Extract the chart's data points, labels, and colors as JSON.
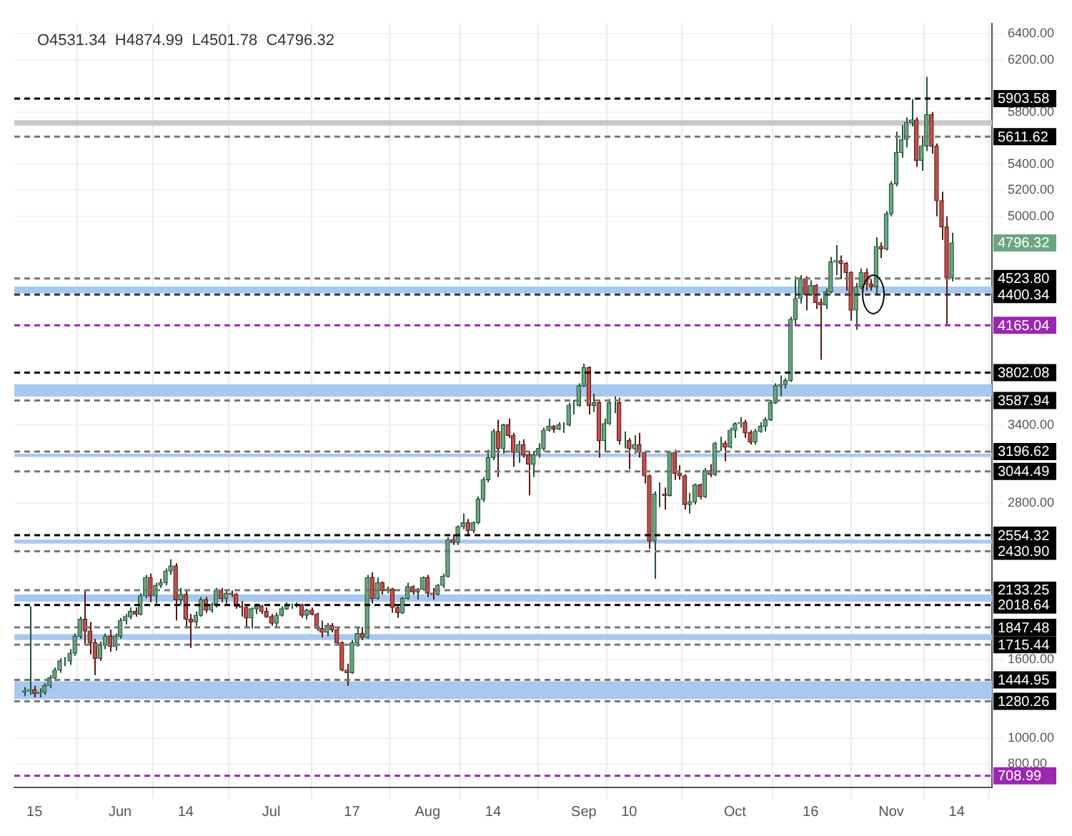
{
  "chart_data": {
    "type": "candlestick",
    "x": [
      "--05-13",
      "--05-14",
      "--05-15",
      "--05-16",
      "--05-17",
      "--05-18",
      "--05-19",
      "--05-20",
      "--05-21",
      "--05-22",
      "--05-23",
      "--05-24",
      "--05-25",
      "--05-26",
      "--05-27",
      "--05-28",
      "--05-29",
      "--05-30",
      "--05-31",
      "--06-01",
      "--06-02",
      "--06-03",
      "--06-04",
      "--06-05",
      "--06-06",
      "--06-07",
      "--06-08",
      "--06-09",
      "--06-10",
      "--06-11",
      "--06-12",
      "--06-13",
      "--06-14",
      "--06-15",
      "--06-16",
      "--06-17",
      "--06-18",
      "--06-19",
      "--06-20",
      "--06-21",
      "--06-22",
      "--06-23",
      "--06-24",
      "--06-25",
      "--06-26",
      "--06-27",
      "--06-28",
      "--06-29",
      "--06-30",
      "--07-01",
      "--07-02",
      "--07-03",
      "--07-04",
      "--07-05",
      "--07-06",
      "--07-07",
      "--07-08",
      "--07-09",
      "--07-10",
      "--07-11",
      "--07-12",
      "--07-13",
      "--07-14",
      "--07-15",
      "--07-16",
      "--07-17",
      "--07-18",
      "--07-19",
      "--07-20",
      "--07-21",
      "--07-22",
      "--07-23",
      "--07-24",
      "--07-25",
      "--07-26",
      "--07-27",
      "--07-28",
      "--07-29",
      "--07-30",
      "--07-31",
      "--08-01",
      "--08-02",
      "--08-03",
      "--08-04",
      "--08-05",
      "--08-06",
      "--08-07",
      "--08-08",
      "--08-09",
      "--08-10",
      "--08-11",
      "--08-12",
      "--08-13",
      "--08-14",
      "--08-15",
      "--08-16",
      "--08-17",
      "--08-18",
      "--08-19",
      "--08-20",
      "--08-21",
      "--08-22",
      "--08-23",
      "--08-24",
      "--08-25",
      "--08-26",
      "--08-27",
      "--08-28",
      "--08-29",
      "--08-30",
      "--08-31",
      "--09-01",
      "--09-02",
      "--09-03",
      "--09-04",
      "--09-05",
      "--09-06",
      "--09-07",
      "--09-08",
      "--09-09",
      "--09-10",
      "--09-11",
      "--09-12",
      "--09-13",
      "--09-14",
      "--09-15",
      "--09-16",
      "--09-17",
      "--09-18",
      "--09-19",
      "--09-20",
      "--09-21",
      "--09-22",
      "--09-23",
      "--09-24",
      "--09-25",
      "--09-26",
      "--09-27",
      "--09-28",
      "--09-29",
      "--09-30",
      "--10-01",
      "--10-02",
      "--10-03",
      "--10-04",
      "--10-05",
      "--10-06",
      "--10-07",
      "--10-08",
      "--10-09",
      "--10-10",
      "--10-11",
      "--10-12",
      "--10-13",
      "--10-14",
      "--10-15",
      "--10-16",
      "--10-17",
      "--10-18",
      "--10-19",
      "--10-20",
      "--10-21",
      "--10-22",
      "--10-23",
      "--10-24",
      "--10-25",
      "--10-26",
      "--10-27",
      "--10-28",
      "--10-29",
      "--10-30",
      "--10-31",
      "--11-01",
      "--11-02",
      "--11-03",
      "--11-04",
      "--11-05",
      "--11-06",
      "--11-07",
      "--11-08",
      "--11-09",
      "--11-10",
      "--11-11",
      "--11-12",
      "--11-13"
    ],
    "ohlc": [
      [
        1350,
        1390,
        1320,
        1360
      ],
      [
        1360,
        2010,
        1330,
        1370
      ],
      [
        1370,
        1400,
        1310,
        1340
      ],
      [
        1340,
        1380,
        1310,
        1350
      ],
      [
        1350,
        1420,
        1330,
        1400
      ],
      [
        1400,
        1480,
        1380,
        1460
      ],
      [
        1460,
        1540,
        1440,
        1520
      ],
      [
        1520,
        1610,
        1500,
        1590
      ],
      [
        1590,
        1620,
        1550,
        1590
      ],
      [
        1590,
        1680,
        1560,
        1650
      ],
      [
        1650,
        1800,
        1630,
        1780
      ],
      [
        1780,
        1930,
        1760,
        1910
      ],
      [
        1910,
        2130,
        1720,
        1820
      ],
      [
        1820,
        1890,
        1640,
        1730
      ],
      [
        1730,
        1760,
        1480,
        1610
      ],
      [
        1610,
        1740,
        1590,
        1710
      ],
      [
        1710,
        1800,
        1680,
        1780
      ],
      [
        1780,
        1830,
        1660,
        1700
      ],
      [
        1700,
        1800,
        1670,
        1780
      ],
      [
        1780,
        1920,
        1760,
        1900
      ],
      [
        1900,
        1950,
        1870,
        1930
      ],
      [
        1930,
        2000,
        1910,
        1970
      ],
      [
        1970,
        2000,
        1930,
        1950
      ],
      [
        1950,
        2110,
        1940,
        2090
      ],
      [
        2090,
        2250,
        2070,
        2230
      ],
      [
        2230,
        2260,
        2040,
        2090
      ],
      [
        2090,
        2190,
        2030,
        2170
      ],
      [
        2170,
        2220,
        2150,
        2190
      ],
      [
        2190,
        2300,
        2170,
        2280
      ],
      [
        2280,
        2370,
        2250,
        2320
      ],
      [
        2320,
        2340,
        1900,
        2060
      ],
      [
        2060,
        2150,
        2020,
        2100
      ],
      [
        2100,
        2130,
        1840,
        1910
      ],
      [
        1910,
        1950,
        1690,
        1890
      ],
      [
        1890,
        1970,
        1860,
        1940
      ],
      [
        1940,
        2080,
        1930,
        2060
      ],
      [
        2060,
        2080,
        1960,
        1980
      ],
      [
        1980,
        2040,
        1960,
        2020
      ],
      [
        2020,
        2150,
        2000,
        2130
      ],
      [
        2130,
        2150,
        2040,
        2070
      ],
      [
        2070,
        2130,
        2030,
        2110
      ],
      [
        2110,
        2130,
        2080,
        2100
      ],
      [
        2100,
        2110,
        1990,
        2010
      ],
      [
        2010,
        2050,
        1930,
        2000
      ],
      [
        2000,
        2020,
        1850,
        1920
      ],
      [
        1920,
        2000,
        1840,
        1990
      ],
      [
        1990,
        2030,
        1950,
        2010
      ],
      [
        2010,
        2020,
        1950,
        1970
      ],
      [
        1970,
        2000,
        1920,
        1930
      ],
      [
        1930,
        1950,
        1860,
        1880
      ],
      [
        1880,
        1960,
        1850,
        1940
      ],
      [
        1940,
        2010,
        1930,
        1990
      ],
      [
        1990,
        2040,
        1980,
        2020
      ],
      [
        2020,
        2030,
        1990,
        2020
      ],
      [
        2020,
        2040,
        2000,
        2020
      ],
      [
        2020,
        2030,
        1920,
        1940
      ],
      [
        1940,
        1990,
        1910,
        1980
      ],
      [
        1980,
        2000,
        1940,
        1950
      ],
      [
        1950,
        1960,
        1820,
        1840
      ],
      [
        1840,
        1900,
        1770,
        1810
      ],
      [
        1810,
        1880,
        1780,
        1860
      ],
      [
        1860,
        1880,
        1810,
        1830
      ],
      [
        1830,
        1850,
        1710,
        1730
      ],
      [
        1730,
        1740,
        1510,
        1520
      ],
      [
        1520,
        1570,
        1400,
        1500
      ],
      [
        1500,
        1750,
        1490,
        1730
      ],
      [
        1730,
        1850,
        1700,
        1800
      ],
      [
        1800,
        1850,
        1750,
        1770
      ],
      [
        1770,
        2250,
        1760,
        2230
      ],
      [
        2230,
        2270,
        2030,
        2070
      ],
      [
        2070,
        2230,
        2060,
        2190
      ],
      [
        2190,
        2200,
        2100,
        2130
      ],
      [
        2130,
        2160,
        2110,
        2140
      ],
      [
        2140,
        2150,
        1960,
        2000
      ],
      [
        2000,
        2010,
        1920,
        1960
      ],
      [
        1960,
        2080,
        1950,
        2070
      ],
      [
        2070,
        2190,
        2060,
        2160
      ],
      [
        2160,
        2170,
        2100,
        2120
      ],
      [
        2120,
        2150,
        2060,
        2140
      ],
      [
        2140,
        2240,
        2130,
        2230
      ],
      [
        2230,
        2250,
        2080,
        2110
      ],
      [
        2110,
        2150,
        2060,
        2100
      ],
      [
        2100,
        2180,
        2090,
        2170
      ],
      [
        2170,
        2260,
        2150,
        2240
      ],
      [
        2240,
        2540,
        2230,
        2520
      ],
      [
        2520,
        2560,
        2480,
        2500
      ],
      [
        2500,
        2630,
        2480,
        2620
      ],
      [
        2620,
        2720,
        2600,
        2650
      ],
      [
        2650,
        2680,
        2560,
        2590
      ],
      [
        2590,
        2660,
        2570,
        2650
      ],
      [
        2650,
        2850,
        2640,
        2830
      ],
      [
        2830,
        3000,
        2810,
        2980
      ],
      [
        2980,
        3210,
        2960,
        3150
      ],
      [
        3150,
        3370,
        3130,
        3350
      ],
      [
        3350,
        3440,
        3000,
        3220
      ],
      [
        3220,
        3410,
        3180,
        3400
      ],
      [
        3400,
        3450,
        3300,
        3320
      ],
      [
        3320,
        3340,
        3080,
        3190
      ],
      [
        3190,
        3280,
        3110,
        3250
      ],
      [
        3250,
        3290,
        3150,
        3170
      ],
      [
        3170,
        3200,
        2860,
        3100
      ],
      [
        3100,
        3200,
        3000,
        3170
      ],
      [
        3170,
        3260,
        3150,
        3220
      ],
      [
        3220,
        3380,
        3200,
        3360
      ],
      [
        3360,
        3450,
        3350,
        3390
      ],
      [
        3390,
        3400,
        3340,
        3370
      ],
      [
        3370,
        3420,
        3360,
        3400
      ],
      [
        3400,
        3420,
        3340,
        3400
      ],
      [
        3400,
        3570,
        3390,
        3550
      ],
      [
        3550,
        3590,
        3480,
        3550
      ],
      [
        3550,
        3720,
        3540,
        3700
      ],
      [
        3700,
        3870,
        3690,
        3840
      ],
      [
        3840,
        3850,
        3480,
        3550
      ],
      [
        3550,
        3640,
        3500,
        3570
      ],
      [
        3570,
        3580,
        3150,
        3280
      ],
      [
        3280,
        3450,
        3190,
        3410
      ],
      [
        3410,
        3600,
        3400,
        3570
      ],
      [
        3570,
        3620,
        3490,
        3570
      ],
      [
        3570,
        3610,
        3250,
        3280
      ],
      [
        3280,
        3350,
        3220,
        3280
      ],
      [
        3280,
        3300,
        3060,
        3220
      ],
      [
        3220,
        3320,
        3180,
        3250
      ],
      [
        3250,
        3340,
        3150,
        3190
      ],
      [
        3190,
        3200,
        2950,
        3010
      ],
      [
        3010,
        3020,
        2450,
        2510
      ],
      [
        2510,
        2890,
        2220,
        2870
      ],
      [
        2870,
        2960,
        2770,
        2870
      ],
      [
        2870,
        2920,
        2750,
        2860
      ],
      [
        2860,
        3200,
        2850,
        3190
      ],
      [
        3190,
        3210,
        2980,
        3030
      ],
      [
        3030,
        3090,
        2980,
        3010
      ],
      [
        3010,
        3020,
        2750,
        2790
      ],
      [
        2790,
        2880,
        2720,
        2810
      ],
      [
        2810,
        2950,
        2790,
        2940
      ],
      [
        2940,
        2950,
        2830,
        2850
      ],
      [
        2850,
        3070,
        2840,
        3050
      ],
      [
        3050,
        3100,
        3000,
        3020
      ],
      [
        3020,
        3270,
        3010,
        3260
      ],
      [
        3260,
        3310,
        3200,
        3260
      ],
      [
        3260,
        3280,
        3120,
        3230
      ],
      [
        3230,
        3380,
        3220,
        3360
      ],
      [
        3360,
        3420,
        3300,
        3410
      ],
      [
        3410,
        3460,
        3380,
        3420
      ],
      [
        3420,
        3440,
        3300,
        3340
      ],
      [
        3340,
        3360,
        3250,
        3270
      ],
      [
        3270,
        3370,
        3250,
        3350
      ],
      [
        3350,
        3420,
        3340,
        3390
      ],
      [
        3390,
        3460,
        3350,
        3440
      ],
      [
        3440,
        3590,
        3430,
        3570
      ],
      [
        3570,
        3720,
        3560,
        3700
      ],
      [
        3700,
        3780,
        3620,
        3710
      ],
      [
        3710,
        3760,
        3680,
        3740
      ],
      [
        3740,
        4230,
        3730,
        4210
      ],
      [
        4210,
        4540,
        4160,
        4370
      ],
      [
        4370,
        4550,
        4330,
        4520
      ],
      [
        4520,
        4540,
        4280,
        4400
      ],
      [
        4400,
        4510,
        4390,
        4470
      ],
      [
        4470,
        4480,
        4290,
        4340
      ],
      [
        4340,
        4370,
        3900,
        4320
      ],
      [
        4320,
        4450,
        4290,
        4420
      ],
      [
        4420,
        4690,
        4410,
        4650
      ],
      [
        4650,
        4780,
        4550,
        4660
      ],
      [
        4660,
        4700,
        4520,
        4640
      ],
      [
        4640,
        4650,
        4430,
        4570
      ],
      [
        4570,
        4580,
        4200,
        4280
      ],
      [
        4280,
        4490,
        4130,
        4460
      ],
      [
        4460,
        4600,
        4440,
        4570
      ],
      [
        4570,
        4600,
        4430,
        4480
      ],
      [
        4480,
        4520,
        4430,
        4460
      ],
      [
        4460,
        4840,
        4400,
        4770
      ],
      [
        4770,
        4800,
        4680,
        4750
      ],
      [
        4750,
        5040,
        4740,
        5020
      ],
      [
        5020,
        5270,
        5000,
        5250
      ],
      [
        5250,
        5650,
        5230,
        5490
      ],
      [
        5490,
        5700,
        5450,
        5590
      ],
      [
        5590,
        5760,
        5530,
        5720
      ],
      [
        5720,
        5900,
        5690,
        5740
      ],
      [
        5740,
        5760,
        5380,
        5430
      ],
      [
        5430,
        5620,
        5350,
        5540
      ],
      [
        5540,
        6070,
        5500,
        5780
      ],
      [
        5780,
        5800,
        5480,
        5540
      ],
      [
        5540,
        5560,
        5000,
        5120
      ],
      [
        5120,
        5190,
        4820,
        4920
      ],
      [
        4920,
        5000,
        4165.04,
        4531.34
      ],
      [
        4531.34,
        4874.99,
        4501.78,
        4796.32
      ]
    ],
    "xlim": [
      "--05-11",
      "--11-21"
    ],
    "xticks": [
      {
        "value": "--05-15",
        "label": "15"
      },
      {
        "value": "--06-01",
        "label": "Jun"
      },
      {
        "value": "--06-14",
        "label": "14"
      },
      {
        "value": "--07-01",
        "label": "Jul"
      },
      {
        "value": "--07-17",
        "label": "17"
      },
      {
        "value": "--08-01",
        "label": "Aug"
      },
      {
        "value": "--08-14",
        "label": "14"
      },
      {
        "value": "--09-01",
        "label": "Sep"
      },
      {
        "value": "--09-10",
        "label": "10"
      },
      {
        "value": "--10-01",
        "label": "Oct"
      },
      {
        "value": "--10-16",
        "label": "16"
      },
      {
        "value": "--11-01",
        "label": "Nov"
      },
      {
        "value": "--11-14",
        "label": "14"
      }
    ],
    "ylim": [
      620,
      6480
    ],
    "yticks": [
      {
        "value": 800,
        "label": "800.00"
      },
      {
        "value": 1000,
        "label": "1000.00"
      },
      {
        "value": 1600,
        "label": "1600.00"
      },
      {
        "value": 2800,
        "label": "2800.00"
      },
      {
        "value": 3400,
        "label": "3400.00"
      },
      {
        "value": 5000,
        "label": "5000.00"
      },
      {
        "value": 5200,
        "label": "5200.00"
      },
      {
        "value": 5400,
        "label": "5400.00"
      },
      {
        "value": 5800,
        "label": "5800.00"
      },
      {
        "value": 6200,
        "label": "6200.00"
      },
      {
        "value": 6400,
        "label": "6400.00"
      }
    ],
    "grid": true,
    "bands": [
      {
        "axis": "y",
        "from": 5696,
        "to": 5738,
        "color": "#c8c8c8"
      },
      {
        "axis": "y",
        "from": 4410,
        "to": 4462,
        "color": "#a9c8f0"
      },
      {
        "axis": "y",
        "from": 3618,
        "to": 3713,
        "color": "#a9c8f0"
      },
      {
        "axis": "y",
        "from": 3155,
        "to": 3180,
        "color": "#a9c8f0"
      },
      {
        "axis": "y",
        "from": 2490,
        "to": 2520,
        "color": "#a9c8f0"
      },
      {
        "axis": "y",
        "from": 2045,
        "to": 2100,
        "color": "#a9c8f0"
      },
      {
        "axis": "y",
        "from": 1750,
        "to": 1795,
        "color": "#a9c8f0"
      },
      {
        "axis": "y",
        "from": 1297,
        "to": 1434,
        "color": "#a9c8f0"
      }
    ],
    "ref_lines": [
      {
        "axis": "y",
        "value": 5903.58,
        "label": "5903.58",
        "color": "#000000",
        "line_style": "dashed"
      },
      {
        "axis": "y",
        "value": 5611.62,
        "label": "5611.62",
        "color": "#777777",
        "line_style": "dashed"
      },
      {
        "axis": "y",
        "value": 4523.8,
        "label": "4523.80",
        "color": "#777777",
        "line_style": "dashed"
      },
      {
        "axis": "y",
        "value": 4400.34,
        "label": "4400.34",
        "color": "#333333",
        "line_style": "dashed"
      },
      {
        "axis": "y",
        "value": 4165.04,
        "label": "4165.04",
        "color": "#9c27b0",
        "line_style": "dashed"
      },
      {
        "axis": "y",
        "value": 3802.08,
        "label": "3802.08",
        "color": "#000000",
        "line_style": "dashed"
      },
      {
        "axis": "y",
        "value": 3587.94,
        "label": "3587.94",
        "color": "#777777",
        "line_style": "dashed"
      },
      {
        "axis": "y",
        "value": 3196.62,
        "label": "3196.62",
        "color": "#777777",
        "line_style": "dashed"
      },
      {
        "axis": "y",
        "value": 3044.49,
        "label": "3044.49",
        "color": "#777777",
        "line_style": "dashed"
      },
      {
        "axis": "y",
        "value": 2554.32,
        "label": "2554.32",
        "color": "#000000",
        "line_style": "dashed"
      },
      {
        "axis": "y",
        "value": 2430.9,
        "label": "2430.90",
        "color": "#777777",
        "line_style": "dashed"
      },
      {
        "axis": "y",
        "value": 2133.25,
        "label": "2133.25",
        "color": "#777777",
        "line_style": "dashed"
      },
      {
        "axis": "y",
        "value": 2018.64,
        "label": "2018.64",
        "color": "#000000",
        "line_style": "dashed"
      },
      {
        "axis": "y",
        "value": 1847.48,
        "label": "1847.48",
        "color": "#777777",
        "line_style": "dashed"
      },
      {
        "axis": "y",
        "value": 1715.44,
        "label": "1715.44",
        "color": "#777777",
        "line_style": "dashed"
      },
      {
        "axis": "y",
        "value": 1444.95,
        "label": "1444.95",
        "color": "#777777",
        "line_style": "dashed"
      },
      {
        "axis": "y",
        "value": 1280.26,
        "label": "1280.26",
        "color": "#777777",
        "line_style": "dashed"
      },
      {
        "axis": "y",
        "value": 708.99,
        "label": "708.99",
        "color": "#9c27b0",
        "line_style": "dashed"
      }
    ],
    "annotations": [
      "O4531.34  H4874.99  L4501.78  C4796.32",
      "4796.32"
    ],
    "legend": false
  }
}
